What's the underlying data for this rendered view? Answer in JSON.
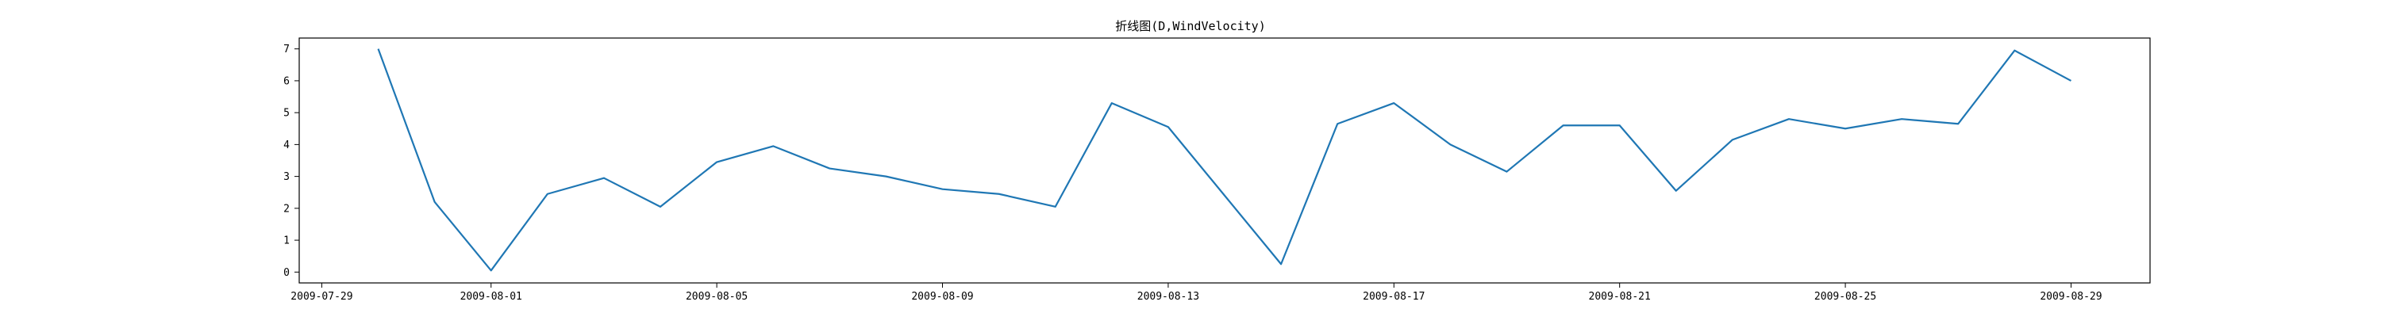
{
  "chart_data": {
    "type": "line",
    "title": "折线图(D,WindVelocity)",
    "xlabel": "",
    "ylabel": "",
    "series": [
      {
        "name": "WindVelocity",
        "color": "#1f77b4",
        "points": [
          {
            "x": "2009-07-30",
            "y": 7.0
          },
          {
            "x": "2009-07-31",
            "y": 2.2
          },
          {
            "x": "2009-08-01",
            "y": 0.05
          },
          {
            "x": "2009-08-02",
            "y": 2.45
          },
          {
            "x": "2009-08-03",
            "y": 2.95
          },
          {
            "x": "2009-08-04",
            "y": 2.05
          },
          {
            "x": "2009-08-05",
            "y": 3.45
          },
          {
            "x": "2009-08-06",
            "y": 3.95
          },
          {
            "x": "2009-08-07",
            "y": 3.25
          },
          {
            "x": "2009-08-08",
            "y": 3.0
          },
          {
            "x": "2009-08-09",
            "y": 2.6
          },
          {
            "x": "2009-08-10",
            "y": 2.45
          },
          {
            "x": "2009-08-11",
            "y": 2.05
          },
          {
            "x": "2009-08-12",
            "y": 5.3
          },
          {
            "x": "2009-08-13",
            "y": 4.55
          },
          {
            "x": "2009-08-14",
            "y": 2.4
          },
          {
            "x": "2009-08-15",
            "y": 0.25
          },
          {
            "x": "2009-08-16",
            "y": 4.65
          },
          {
            "x": "2009-08-17",
            "y": 5.3
          },
          {
            "x": "2009-08-18",
            "y": 4.0
          },
          {
            "x": "2009-08-19",
            "y": 3.15
          },
          {
            "x": "2009-08-20",
            "y": 4.6
          },
          {
            "x": "2009-08-21",
            "y": 4.6
          },
          {
            "x": "2009-08-22",
            "y": 2.55
          },
          {
            "x": "2009-08-23",
            "y": 4.15
          },
          {
            "x": "2009-08-24",
            "y": 4.8
          },
          {
            "x": "2009-08-25",
            "y": 4.5
          },
          {
            "x": "2009-08-26",
            "y": 4.8
          },
          {
            "x": "2009-08-27",
            "y": 4.65
          },
          {
            "x": "2009-08-28",
            "y": 6.95
          },
          {
            "x": "2009-08-29",
            "y": 6.0
          }
        ]
      }
    ],
    "xlim": [
      "2009-07-28T14:24:00",
      "2009-08-30T09:36:00"
    ],
    "ylim": [
      -0.34,
      7.34
    ],
    "x_ticks": [
      "2009-07-29",
      "2009-08-01",
      "2009-08-05",
      "2009-08-09",
      "2009-08-13",
      "2009-08-17",
      "2009-08-21",
      "2009-08-25",
      "2009-08-29"
    ],
    "y_ticks": [
      0,
      1,
      2,
      3,
      4,
      5,
      6,
      7
    ],
    "grid": false,
    "legend": "none"
  }
}
